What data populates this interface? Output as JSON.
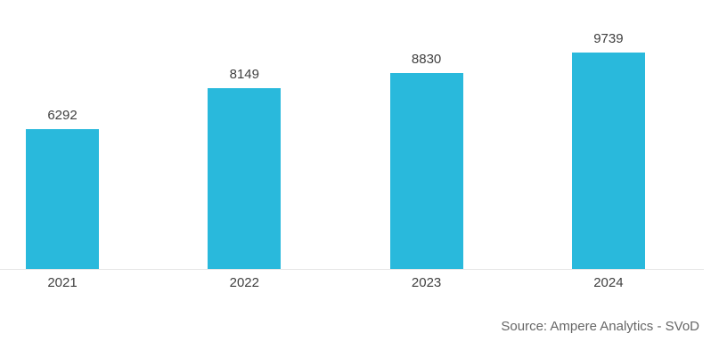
{
  "chart_data": {
    "type": "bar",
    "categories": [
      "2021",
      "2022",
      "2023",
      "2024"
    ],
    "values": [
      6292,
      8149,
      8830,
      9739
    ],
    "title": "",
    "xlabel": "",
    "ylabel": "",
    "ylim": [
      0,
      12100
    ],
    "grid": false,
    "legend": false,
    "value_labels_shown": true,
    "source": "Source: Ampere Analytics - SVoD"
  },
  "colors": {
    "bar": "#29B9DC",
    "label_text": "#3f3f3f",
    "axis_line": "#e6e6e6",
    "source_text": "#666666",
    "background": "#ffffff"
  }
}
